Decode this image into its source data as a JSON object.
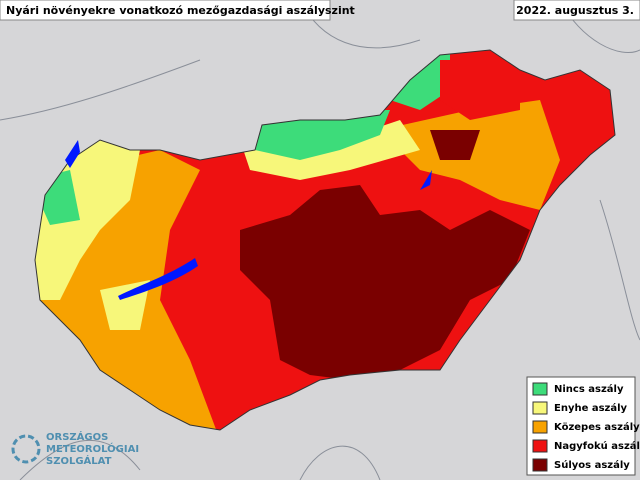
{
  "title": "Nyári növényekre vonatkozó mezőgazdasági aszályszint",
  "date": "2022. augusztus 3.",
  "legend": [
    {
      "label": "Nincs aszály",
      "color": "#3ddc7a"
    },
    {
      "label": "Enyhe aszály",
      "color": "#f7f77a"
    },
    {
      "label": "Közepes aszály",
      "color": "#f7a200"
    },
    {
      "label": "Nagyfokú aszály",
      "color": "#ee1111"
    },
    {
      "label": "Súlyos aszály",
      "color": "#7a0000"
    }
  ],
  "logo": [
    "ORSZÁGOS",
    "METEOROLÓGIAI",
    "SZOLGÁLAT"
  ]
}
